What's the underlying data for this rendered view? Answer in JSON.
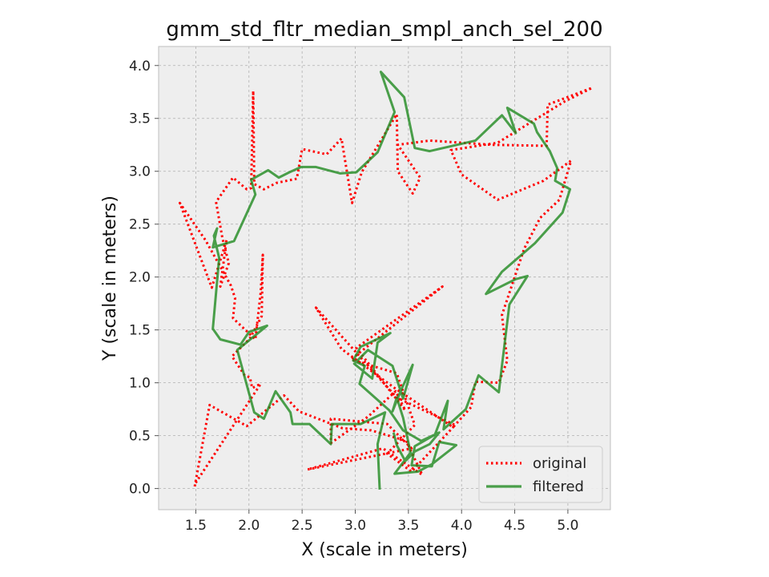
{
  "chart_data": {
    "type": "line",
    "title": "gmm_std_fltr_median_smpl_anch_sel_200",
    "xlabel": "X (scale in meters)",
    "ylabel": "Y (scale in meters)",
    "xlim": [
      1.15,
      5.4
    ],
    "ylim": [
      -0.2,
      4.18
    ],
    "xticks": [
      "1.5",
      "2.0",
      "2.5",
      "3.0",
      "3.5",
      "4.0",
      "4.5",
      "5.0"
    ],
    "xtick_values": [
      1.5,
      2.0,
      2.5,
      3.0,
      3.5,
      4.0,
      4.5,
      5.0
    ],
    "yticks": [
      "0.0",
      "0.5",
      "1.0",
      "1.5",
      "2.0",
      "2.5",
      "3.0",
      "3.5",
      "4.0"
    ],
    "ytick_values": [
      0.0,
      0.5,
      1.0,
      1.5,
      2.0,
      2.5,
      3.0,
      3.5,
      4.0
    ],
    "grid": true,
    "legend_position": "bottom-right",
    "background": "#eeeeee",
    "series": [
      {
        "name": "original",
        "color": "#ff0000",
        "style": "dotted",
        "points": [
          [
            1.49,
            0.02
          ],
          [
            1.63,
            0.79
          ],
          [
            1.98,
            0.59
          ],
          [
            2.33,
            0.88
          ],
          [
            2.47,
            0.73
          ],
          [
            2.88,
            0.57
          ],
          [
            3.15,
            0.55
          ],
          [
            3.48,
            0.45
          ],
          [
            3.63,
            0.13
          ],
          [
            3.26,
            0.38
          ],
          [
            2.55,
            0.18
          ],
          [
            3.53,
            0.38
          ],
          [
            3.3,
            0.61
          ],
          [
            2.77,
            0.66
          ],
          [
            2.77,
            0.43
          ],
          [
            3.12,
            0.68
          ],
          [
            3.38,
            0.92
          ],
          [
            3.47,
            0.74
          ],
          [
            3.01,
            1.33
          ],
          [
            3.82,
            1.91
          ],
          [
            2.96,
            1.22
          ],
          [
            3.39,
            1.09
          ],
          [
            3.56,
            0.6
          ],
          [
            3.3,
            0.33
          ],
          [
            3.53,
            0.16
          ],
          [
            3.94,
            0.6
          ],
          [
            3.39,
            0.86
          ],
          [
            2.63,
            1.71
          ],
          [
            2.87,
            1.32
          ],
          [
            3.37,
            0.95
          ],
          [
            3.64,
            0.77
          ],
          [
            3.92,
            0.58
          ],
          [
            4.09,
            0.77
          ],
          [
            4.13,
            1.01
          ],
          [
            4.35,
            1.0
          ],
          [
            4.43,
            1.21
          ],
          [
            4.38,
            1.64
          ],
          [
            4.49,
            1.97
          ],
          [
            4.59,
            2.27
          ],
          [
            4.74,
            2.56
          ],
          [
            4.92,
            2.73
          ],
          [
            5.03,
            3.1
          ],
          [
            4.77,
            2.91
          ],
          [
            4.34,
            2.73
          ],
          [
            4.0,
            2.97
          ],
          [
            3.9,
            3.2
          ],
          [
            4.34,
            3.27
          ],
          [
            4.97,
            3.66
          ],
          [
            5.23,
            3.79
          ],
          [
            4.81,
            3.63
          ],
          [
            4.8,
            3.24
          ],
          [
            4.29,
            3.25
          ],
          [
            3.7,
            3.29
          ],
          [
            3.4,
            3.25
          ],
          [
            3.61,
            2.94
          ],
          [
            3.54,
            2.79
          ],
          [
            3.4,
            3.0
          ],
          [
            3.39,
            3.54
          ],
          [
            3.06,
            2.99
          ],
          [
            2.97,
            2.7
          ],
          [
            2.87,
            3.31
          ],
          [
            2.73,
            3.16
          ],
          [
            2.5,
            3.21
          ],
          [
            2.45,
            2.93
          ],
          [
            2.26,
            2.89
          ],
          [
            2.14,
            2.83
          ],
          [
            2.05,
            2.88
          ],
          [
            2.04,
            3.76
          ],
          [
            2.02,
            2.84
          ],
          [
            1.98,
            2.83
          ],
          [
            1.85,
            2.94
          ],
          [
            1.69,
            2.71
          ],
          [
            1.75,
            2.37
          ],
          [
            1.81,
            2.13
          ],
          [
            1.73,
            1.91
          ],
          [
            1.79,
            2.35
          ],
          [
            1.65,
            1.9
          ],
          [
            1.35,
            2.7
          ],
          [
            1.59,
            2.35
          ],
          [
            1.83,
            1.92
          ],
          [
            1.87,
            1.8
          ],
          [
            1.85,
            1.61
          ],
          [
            2.06,
            1.41
          ],
          [
            2.11,
            1.85
          ],
          [
            2.13,
            2.21
          ],
          [
            2.12,
            1.63
          ],
          [
            2.01,
            1.42
          ],
          [
            1.84,
            1.25
          ],
          [
            1.96,
            1.07
          ],
          [
            2.01,
            1.05
          ],
          [
            2.03,
            0.95
          ],
          [
            2.11,
            0.99
          ],
          [
            1.49,
            0.04
          ]
        ]
      },
      {
        "name": "filtered",
        "color": "#1f8a1f",
        "style": "solid",
        "points": [
          [
            3.23,
            -0.01
          ],
          [
            3.21,
            0.42
          ],
          [
            3.28,
            0.72
          ],
          [
            3.05,
            0.61
          ],
          [
            2.78,
            0.61
          ],
          [
            2.77,
            0.42
          ],
          [
            2.57,
            0.61
          ],
          [
            2.41,
            0.61
          ],
          [
            2.39,
            0.72
          ],
          [
            2.25,
            0.92
          ],
          [
            2.14,
            0.66
          ],
          [
            2.05,
            0.72
          ],
          [
            1.89,
            1.31
          ],
          [
            2.17,
            1.54
          ],
          [
            2.0,
            1.48
          ],
          [
            1.92,
            1.36
          ],
          [
            1.73,
            1.41
          ],
          [
            1.66,
            1.51
          ],
          [
            1.72,
            2.18
          ],
          [
            1.67,
            2.39
          ],
          [
            1.7,
            2.46
          ],
          [
            1.66,
            2.28
          ],
          [
            1.86,
            2.34
          ],
          [
            2.06,
            2.78
          ],
          [
            2.02,
            2.92
          ],
          [
            2.18,
            3.01
          ],
          [
            2.28,
            2.94
          ],
          [
            2.38,
            2.99
          ],
          [
            2.49,
            3.04
          ],
          [
            2.63,
            3.04
          ],
          [
            2.86,
            2.98
          ],
          [
            3.01,
            2.99
          ],
          [
            3.21,
            3.18
          ],
          [
            3.37,
            3.56
          ],
          [
            3.24,
            3.94
          ],
          [
            3.46,
            3.7
          ],
          [
            3.56,
            3.22
          ],
          [
            3.7,
            3.19
          ],
          [
            4.13,
            3.29
          ],
          [
            4.38,
            3.53
          ],
          [
            4.51,
            3.36
          ],
          [
            4.43,
            3.6
          ],
          [
            4.68,
            3.45
          ],
          [
            4.71,
            3.37
          ],
          [
            4.83,
            3.19
          ],
          [
            4.9,
            3.03
          ],
          [
            4.88,
            2.91
          ],
          [
            5.02,
            2.83
          ],
          [
            4.95,
            2.61
          ],
          [
            4.69,
            2.32
          ],
          [
            4.38,
            2.05
          ],
          [
            4.23,
            1.84
          ],
          [
            4.51,
            1.98
          ],
          [
            4.62,
            2.01
          ],
          [
            4.45,
            1.74
          ],
          [
            4.38,
            1.16
          ],
          [
            4.35,
            0.91
          ],
          [
            4.16,
            1.07
          ],
          [
            4.04,
            0.75
          ],
          [
            3.83,
            0.56
          ],
          [
            3.87,
            0.83
          ],
          [
            3.75,
            0.51
          ],
          [
            3.56,
            0.4
          ],
          [
            3.53,
            0.22
          ],
          [
            3.72,
            0.21
          ],
          [
            3.79,
            0.44
          ],
          [
            3.95,
            0.41
          ],
          [
            3.72,
            0.23
          ],
          [
            3.59,
            0.16
          ],
          [
            3.37,
            0.14
          ],
          [
            3.52,
            0.34
          ],
          [
            3.45,
            0.67
          ],
          [
            3.39,
            0.86
          ],
          [
            3.35,
            0.73
          ],
          [
            3.43,
            0.93
          ],
          [
            3.54,
            1.17
          ],
          [
            3.45,
            0.85
          ],
          [
            3.35,
            1.16
          ],
          [
            3.12,
            1.31
          ],
          [
            2.99,
            1.18
          ],
          [
            3.16,
            1.04
          ],
          [
            3.21,
            1.38
          ],
          [
            3.33,
            1.47
          ],
          [
            3.05,
            1.34
          ],
          [
            2.98,
            1.21
          ],
          [
            3.09,
            1.16
          ],
          [
            3.04,
            0.99
          ],
          [
            3.32,
            0.74
          ],
          [
            3.45,
            0.55
          ],
          [
            3.62,
            0.45
          ],
          [
            3.79,
            0.53
          ],
          [
            3.7,
            0.42
          ],
          [
            3.56,
            0.35
          ],
          [
            3.47,
            0.26
          ],
          [
            3.39,
            0.41
          ],
          [
            3.36,
            0.53
          ]
        ]
      }
    ]
  }
}
